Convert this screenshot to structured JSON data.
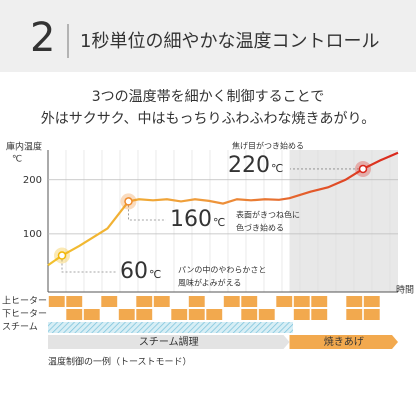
{
  "header": {
    "number": "2",
    "title": "1秒単位の細やかな温度コントロール"
  },
  "subtitle": [
    "3つの温度帯を細かく制御することで",
    "外はサクサク、中はもっちりふわふわな焼きあがり。"
  ],
  "chart_data": {
    "type": "line",
    "y_label": [
      "庫内温度",
      "℃"
    ],
    "x_label": "時間",
    "ylim": [
      0,
      255
    ],
    "yticks": [
      100,
      200
    ],
    "xlim": [
      0,
      100
    ],
    "grid": true,
    "x": [
      0,
      4,
      9,
      14,
      17,
      23,
      26,
      30,
      34,
      38,
      42,
      46,
      50,
      54,
      58,
      62,
      66,
      69,
      75,
      80,
      85,
      90,
      95,
      100
    ],
    "values": [
      42,
      60,
      78,
      98,
      110,
      160,
      164,
      162,
      164,
      160,
      164,
      161,
      156,
      164,
      162,
      164,
      163,
      166,
      178,
      186,
      200,
      220,
      236,
      250
    ],
    "colors": [
      "#f2c12e",
      "#ef9a3c",
      "#d9261c"
    ],
    "annotations": [
      {
        "index": 1,
        "temp": "60",
        "unit": "℃",
        "color": "#f2b705",
        "note": [
          "パンの中のやわらかさと",
          "風味がよみがえる"
        ]
      },
      {
        "index": 5,
        "temp": "160",
        "unit": "℃",
        "color": "#ef8a2c",
        "note": [
          "表面がきつね色に",
          "色づき始める"
        ]
      },
      {
        "index": 21,
        "temp": "220",
        "unit": "℃",
        "color": "#d9261c",
        "note": [
          "焦げ目がつき始める"
        ]
      }
    ],
    "heaters": [
      {
        "name": "上ヒーター",
        "states": [
          1,
          1,
          0,
          1,
          0,
          1,
          1,
          0,
          1,
          0,
          1,
          1,
          0,
          1,
          1,
          1,
          0,
          1,
          1,
          0
        ]
      },
      {
        "name": "下ヒーター",
        "states": [
          0,
          1,
          1,
          0,
          1,
          1,
          0,
          1,
          1,
          1,
          0,
          1,
          1,
          0,
          1,
          1,
          0,
          1,
          1,
          0
        ]
      },
      {
        "name": "スチーム",
        "states": [
          1,
          1,
          1,
          1,
          1,
          1,
          1,
          1,
          1,
          1,
          1,
          1,
          1,
          1,
          0,
          0,
          0,
          0,
          0,
          0
        ]
      }
    ],
    "phases": [
      {
        "label": "スチーム調理",
        "start": 0,
        "end": 69
      },
      {
        "label": "焼きあげ",
        "start": 69,
        "end": 100
      }
    ],
    "footnote": "温度制御の一例（トーストモード）"
  }
}
